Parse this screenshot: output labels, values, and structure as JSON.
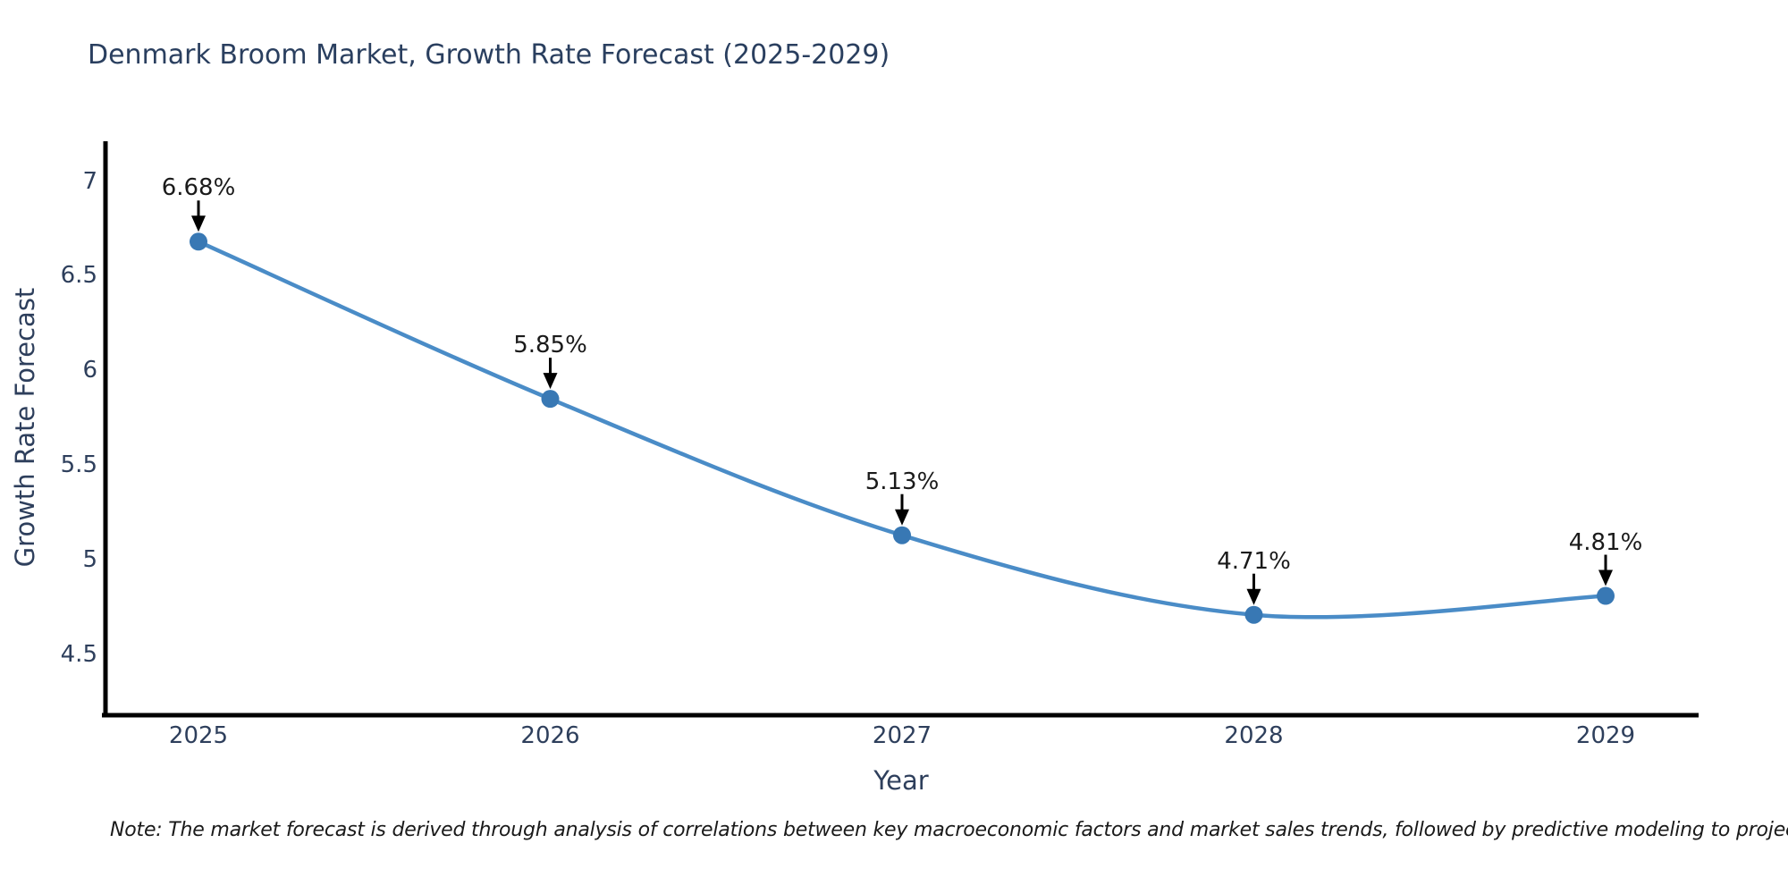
{
  "title": "Denmark Broom Market, Growth Rate Forecast (2025-2029)",
  "note": "Note: The market forecast is derived through analysis of correlations between key macroeconomic factors and market sales trends, followed by predictive modeling to project future sales.",
  "chart_data": {
    "type": "line",
    "title": "Denmark Broom Market, Growth Rate Forecast (2025-2029)",
    "xlabel": "Year",
    "ylabel": "Growth Rate Forecast",
    "x": [
      "2025",
      "2026",
      "2027",
      "2028",
      "2029"
    ],
    "series": [
      {
        "name": "Growth Rate Forecast",
        "values": [
          6.68,
          5.85,
          5.13,
          4.71,
          4.81
        ]
      }
    ],
    "point_labels": [
      "6.68%",
      "5.85%",
      "5.13%",
      "4.71%",
      "4.81%"
    ],
    "yticks": [
      4.5,
      5,
      5.5,
      6,
      6.5,
      7
    ],
    "ylim": [
      4.18,
      7.21
    ],
    "grid": false,
    "legend_position": "none",
    "annotation_arrows": true,
    "smooth_spline": true,
    "colors": {
      "line": "#4a8cc7",
      "marker": "#3878b4",
      "axis": "#000000",
      "tick_text": "#2e3f5c",
      "title_text": "#2a3f5f",
      "annotation_text": "#1a1a1a",
      "arrow": "#000000",
      "background": "#ffffff"
    }
  }
}
